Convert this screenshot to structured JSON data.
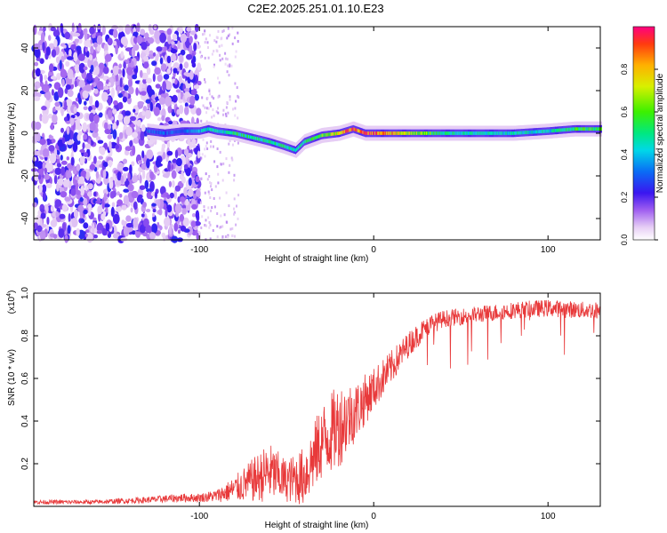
{
  "title": "C2E2.2025.251.01.10.E23",
  "chart_data": [
    {
      "type": "heatmap",
      "xlabel": "Height of straight line (km)",
      "ylabel": "Frequency (Hz)",
      "xlim": [
        -195,
        130
      ],
      "ylim": [
        -50,
        50
      ],
      "xticks": [
        -100,
        0,
        100
      ],
      "xtick_labels": [
        "-100",
        "0",
        "100"
      ],
      "yticks": [
        -40,
        -20,
        0,
        20,
        40
      ],
      "ytick_labels": [
        "-40",
        "-20",
        "0",
        "20",
        "40"
      ],
      "colorbar": {
        "label": "Normalized spectral amplitude",
        "range": [
          0,
          1
        ],
        "ticks": [
          0,
          0.2,
          0.4,
          0.6,
          0.8
        ],
        "tick_labels": [
          "0.0",
          "0.2",
          "0.4",
          "0.6",
          "0.8"
        ]
      },
      "noise_region_x": [
        -195,
        -100
      ],
      "sparse_noise_x": [
        -100,
        -78
      ],
      "ridge_points": [
        {
          "x": -130,
          "y": 1,
          "amp": 0.3
        },
        {
          "x": -120,
          "y": 0,
          "amp": 0.3
        },
        {
          "x": -110,
          "y": 1,
          "amp": 0.3
        },
        {
          "x": -100,
          "y": 1,
          "amp": 0.4
        },
        {
          "x": -95,
          "y": 2,
          "amp": 0.45
        },
        {
          "x": -90,
          "y": 1,
          "amp": 0.45
        },
        {
          "x": -80,
          "y": 0,
          "amp": 0.5
        },
        {
          "x": -70,
          "y": -2,
          "amp": 0.5
        },
        {
          "x": -60,
          "y": -4,
          "amp": 0.5
        },
        {
          "x": -52,
          "y": -6,
          "amp": 0.5
        },
        {
          "x": -45,
          "y": -8,
          "amp": 0.45
        },
        {
          "x": -40,
          "y": -4,
          "amp": 0.5
        },
        {
          "x": -30,
          "y": -1,
          "amp": 0.6
        },
        {
          "x": -20,
          "y": 0,
          "amp": 0.8
        },
        {
          "x": -12,
          "y": 2,
          "amp": 0.9
        },
        {
          "x": -5,
          "y": 0,
          "amp": 0.9
        },
        {
          "x": 0,
          "y": 0,
          "amp": 0.9
        },
        {
          "x": 20,
          "y": 0,
          "amp": 0.7
        },
        {
          "x": 40,
          "y": 0,
          "amp": 0.5
        },
        {
          "x": 60,
          "y": 0,
          "amp": 0.45
        },
        {
          "x": 80,
          "y": 0,
          "amp": 0.45
        },
        {
          "x": 100,
          "y": 1,
          "amp": 0.45
        },
        {
          "x": 115,
          "y": 2,
          "amp": 0.55
        },
        {
          "x": 130,
          "y": 2,
          "amp": 0.6
        }
      ]
    },
    {
      "type": "line",
      "xlabel": "Height of straight line (km)",
      "ylabel": "SNR (10 * v/v)",
      "y_multiplier_label": "(x10",
      "y_multiplier_exp": "4",
      "y_multiplier_close": ")",
      "xlim": [
        -195,
        130
      ],
      "ylim": [
        0,
        1.0
      ],
      "xticks": [
        -100,
        0,
        100
      ],
      "xtick_labels": [
        "-100",
        "0",
        "100"
      ],
      "yticks": [
        0.2,
        0.4,
        0.6,
        0.8,
        1.0
      ],
      "ytick_labels": [
        "0.2",
        "0.4",
        "0.6",
        "0.8",
        "1.0"
      ],
      "color": "#e8393a",
      "series": [
        {
          "name": "SNR",
          "x": [
            -195,
            -160,
            -130,
            -110,
            -100,
            -90,
            -80,
            -70,
            -60,
            -50,
            -40,
            -30,
            -20,
            -10,
            0,
            10,
            20,
            30,
            40,
            50,
            60,
            80,
            100,
            120,
            130
          ],
          "y": [
            0.02,
            0.02,
            0.03,
            0.04,
            0.04,
            0.05,
            0.08,
            0.12,
            0.16,
            0.12,
            0.14,
            0.3,
            0.38,
            0.45,
            0.55,
            0.65,
            0.76,
            0.84,
            0.88,
            0.89,
            0.9,
            0.92,
            0.93,
            0.92,
            0.92
          ],
          "noise_amplitude": [
            0.01,
            0.01,
            0.015,
            0.02,
            0.02,
            0.03,
            0.06,
            0.1,
            0.14,
            0.1,
            0.14,
            0.18,
            0.2,
            0.14,
            0.1,
            0.08,
            0.06,
            0.05,
            0.04,
            0.04,
            0.04,
            0.04,
            0.04,
            0.04,
            0.04
          ]
        }
      ]
    }
  ]
}
